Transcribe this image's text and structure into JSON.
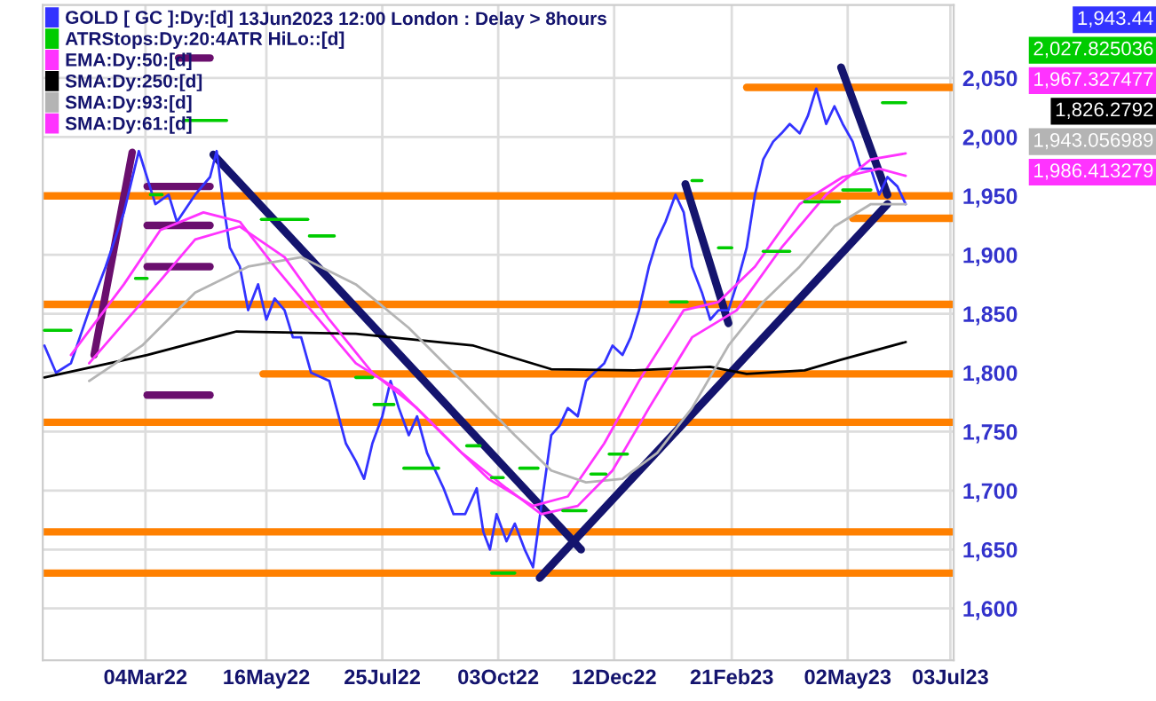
{
  "chart_data": {
    "type": "line",
    "title": "13Jun2023 12:00 London : Delay > 8hours",
    "annotations": [
      "1,943.44",
      "2,027.825036",
      "1,967.327477",
      "1,826.2792",
      "1,943.056989",
      "1,986.413279"
    ],
    "xlim": [
      "2022-01-01",
      "2023-07-05"
    ],
    "ylim": [
      1556,
      2112
    ],
    "xticks": [
      {
        "value": "2022-03-04",
        "label": "04Mar22"
      },
      {
        "value": "2022-05-16",
        "label": "16May22"
      },
      {
        "value": "2022-07-25",
        "label": "25Jul22"
      },
      {
        "value": "2022-10-03",
        "label": "03Oct22"
      },
      {
        "value": "2022-12-12",
        "label": "12Dec22"
      },
      {
        "value": "2023-02-21",
        "label": "21Feb23"
      },
      {
        "value": "2023-05-02",
        "label": "02May23"
      },
      {
        "value": "2023-07-03",
        "label": "03Jul23"
      }
    ],
    "yticks": [
      {
        "value": 1600,
        "label": "1,600"
      },
      {
        "value": 1650,
        "label": "1,650"
      },
      {
        "value": 1700,
        "label": "1,700"
      },
      {
        "value": 1750,
        "label": "1,750"
      },
      {
        "value": 1800,
        "label": "1,800"
      },
      {
        "value": 1850,
        "label": "1,850"
      },
      {
        "value": 1900,
        "label": "1,900"
      },
      {
        "value": 1950,
        "label": "1,950"
      },
      {
        "value": 2000,
        "label": "2,000"
      },
      {
        "value": 2050,
        "label": "2,050"
      }
    ],
    "grid": true,
    "legend": "top left",
    "marker": "none",
    "line_style": "solid",
    "ref_lines": [
      {
        "axis": "y",
        "value": 1950,
        "color": "#ff8000"
      },
      {
        "axis": "y",
        "value": 1858,
        "color": "#ff8000"
      },
      {
        "axis": "y",
        "value": 1758,
        "color": "#ff8000"
      },
      {
        "axis": "y",
        "value": 1665,
        "color": "#ff8000"
      },
      {
        "axis": "y",
        "value": 1630,
        "color": "#ff8000"
      }
    ],
    "series": [
      {
        "name": "GOLD [ GC ]:Dy:[d]",
        "color": "#3333ff",
        "x": [
          "2022-01-02",
          "2022-01-09",
          "2022-01-18",
          "2022-01-29",
          "2022-02-08",
          "2022-02-19",
          "2022-02-28",
          "2022-03-10",
          "2022-03-18",
          "2022-03-23",
          "2022-04-03",
          "2022-04-12",
          "2022-04-16",
          "2022-04-20",
          "2022-04-24",
          "2022-04-30",
          "2022-05-05",
          "2022-05-11",
          "2022-05-16",
          "2022-05-21",
          "2022-05-27",
          "2022-06-01",
          "2022-06-06",
          "2022-06-12",
          "2022-06-23",
          "2022-07-03",
          "2022-07-09",
          "2022-07-14",
          "2022-07-19",
          "2022-07-25",
          "2022-07-30",
          "2022-08-04",
          "2022-08-10",
          "2022-08-15",
          "2022-08-21",
          "2022-08-26",
          "2022-08-31",
          "2022-09-06",
          "2022-09-13",
          "2022-09-20",
          "2022-09-24",
          "2022-09-28",
          "2022-10-02",
          "2022-10-08",
          "2022-10-13",
          "2022-10-19",
          "2022-10-24",
          "2022-10-29",
          "2022-11-04",
          "2022-11-09",
          "2022-11-14",
          "2022-11-20",
          "2022-11-25",
          "2022-11-30",
          "2022-12-06",
          "2022-12-11",
          "2022-12-17",
          "2022-12-22",
          "2022-12-27",
          "2023-01-02",
          "2023-01-07",
          "2023-01-12",
          "2023-01-18",
          "2023-01-23",
          "2023-01-28",
          "2023-02-03",
          "2023-02-08",
          "2023-02-13",
          "2023-02-19",
          "2023-02-24",
          "2023-03-02",
          "2023-03-07",
          "2023-03-12",
          "2023-03-18",
          "2023-03-23",
          "2023-03-28",
          "2023-04-03",
          "2023-04-08",
          "2023-04-13",
          "2023-04-19",
          "2023-04-24",
          "2023-04-29",
          "2023-05-05",
          "2023-05-10",
          "2023-05-16",
          "2023-05-21",
          "2023-05-26",
          "2023-06-01",
          "2023-06-06"
        ],
        "values": [
          1823,
          1800,
          1808,
          1853,
          1890,
          1936,
          1988,
          1943,
          1951,
          1928,
          1951,
          1966,
          1988,
          1943,
          1906,
          1890,
          1853,
          1875,
          1845,
          1863,
          1853,
          1830,
          1830,
          1800,
          1793,
          1740,
          1725,
          1710,
          1740,
          1763,
          1793,
          1770,
          1747,
          1763,
          1732,
          1717,
          1702,
          1680,
          1680,
          1702,
          1665,
          1650,
          1680,
          1657,
          1672,
          1650,
          1635,
          1687,
          1747,
          1755,
          1770,
          1763,
          1793,
          1800,
          1808,
          1823,
          1815,
          1830,
          1853,
          1890,
          1913,
          1928,
          1951,
          1936,
          1890,
          1868,
          1845,
          1853,
          1853,
          1875,
          1906,
          1951,
          1981,
          1996,
          2003,
          2011,
          2003,
          2018,
          2041,
          2011,
          2026,
          2011,
          1996,
          1973,
          1973,
          1951,
          1966,
          1958,
          1943
        ]
      },
      {
        "name": "ATRStops:Dy:20:4ATR HiLo::[d]",
        "color": "#00cc00",
        "x": [
          "2022-01-02",
          "2022-01-18"
        ],
        "values": [
          1836,
          1836
        ]
      },
      {
        "name": "EMA:Dy:50:[d]",
        "color": "#ff33ff",
        "x": [
          "2022-01-18",
          "2022-02-19",
          "2022-03-13",
          "2022-04-08",
          "2022-04-30",
          "2022-05-21",
          "2022-06-12",
          "2022-07-09",
          "2022-08-04",
          "2022-08-31",
          "2022-09-27",
          "2022-10-24",
          "2022-11-14",
          "2022-12-06",
          "2022-12-27",
          "2023-01-23",
          "2023-02-13",
          "2023-03-07",
          "2023-04-03",
          "2023-04-29",
          "2023-05-21",
          "2023-06-06"
        ],
        "values": [
          1815,
          1875,
          1921,
          1936,
          1928,
          1890,
          1853,
          1808,
          1785,
          1747,
          1710,
          1687,
          1695,
          1740,
          1793,
          1853,
          1860,
          1890,
          1943,
          1966,
          1973,
          1967
        ]
      },
      {
        "name": "SMA:Dy:250:[d]",
        "color": "#000000",
        "x": [
          "2022-01-02",
          "2022-03-05",
          "2022-04-28",
          "2022-07-09",
          "2022-09-18",
          "2022-11-04",
          "2022-12-24",
          "2023-02-08",
          "2023-03-02",
          "2023-04-06",
          "2023-04-28",
          "2023-06-06"
        ],
        "values": [
          1796,
          1815,
          1835,
          1833,
          1823,
          1803,
          1802,
          1805,
          1799,
          1802,
          1811,
          1826
        ]
      },
      {
        "name": "SMA:Dy:93:[d]",
        "color": "#b4b4b4",
        "x": [
          "2022-01-29",
          "2022-03-02",
          "2022-04-03",
          "2022-05-05",
          "2022-06-06",
          "2022-07-09",
          "2022-08-10",
          "2022-09-11",
          "2022-10-13",
          "2022-11-04",
          "2022-11-25",
          "2022-12-17",
          "2023-01-07",
          "2023-01-28",
          "2023-02-19",
          "2023-03-12",
          "2023-04-03",
          "2023-04-24",
          "2023-05-16",
          "2023-06-06"
        ],
        "values": [
          1793,
          1823,
          1868,
          1890,
          1898,
          1875,
          1838,
          1793,
          1747,
          1717,
          1707,
          1710,
          1732,
          1770,
          1823,
          1860,
          1890,
          1924,
          1943,
          1943
        ]
      },
      {
        "name": "SMA:Dy:61:[d]",
        "color": "#ff33ff",
        "x": [
          "2022-01-29",
          "2022-03-02",
          "2022-04-03",
          "2022-04-30",
          "2022-05-27",
          "2022-06-23",
          "2022-07-19",
          "2022-08-15",
          "2022-09-11",
          "2022-10-08",
          "2022-10-29",
          "2022-11-20",
          "2022-12-11",
          "2023-01-02",
          "2023-01-28",
          "2023-02-24",
          "2023-03-23",
          "2023-04-19",
          "2023-05-16",
          "2023-06-06"
        ],
        "values": [
          1808,
          1860,
          1913,
          1924,
          1898,
          1845,
          1800,
          1770,
          1732,
          1702,
          1680,
          1687,
          1717,
          1770,
          1830,
          1853,
          1906,
          1951,
          1981,
          1986
        ]
      },
      {
        "color": "#00cc00",
        "x": [
          "2022-02-26",
          "2022-03-05"
        ],
        "values": [
          1880,
          1880
        ]
      },
      {
        "color": "#00cc00",
        "x": [
          "2022-03-07",
          "2022-03-14"
        ],
        "values": [
          1951,
          1951
        ]
      },
      {
        "color": "#00cc00",
        "x": [
          "2022-03-27",
          "2022-04-22"
        ],
        "values": [
          2014,
          2014
        ]
      },
      {
        "color": "#00cc00",
        "x": [
          "2022-05-13",
          "2022-06-10"
        ],
        "values": [
          1930,
          1930
        ]
      },
      {
        "color": "#00cc00",
        "x": [
          "2022-06-11",
          "2022-06-26"
        ],
        "values": [
          1916,
          1916
        ]
      },
      {
        "color": "#00cc00",
        "x": [
          "2022-07-09",
          "2022-07-19"
        ],
        "values": [
          1796,
          1796
        ]
      },
      {
        "color": "#00cc00",
        "x": [
          "2022-07-20",
          "2022-08-01"
        ],
        "values": [
          1773,
          1773
        ]
      },
      {
        "color": "#00cc00",
        "x": [
          "2022-08-07",
          "2022-08-28"
        ],
        "values": [
          1719,
          1719
        ]
      },
      {
        "color": "#00cc00",
        "x": [
          "2022-09-14",
          "2022-09-22"
        ],
        "values": [
          1738,
          1738
        ]
      },
      {
        "color": "#00cc00",
        "x": [
          "2022-09-29",
          "2022-10-06"
        ],
        "values": [
          1711,
          1711
        ]
      },
      {
        "color": "#00cc00",
        "x": [
          "2022-09-29",
          "2022-10-13"
        ],
        "values": [
          1630,
          1630
        ]
      },
      {
        "color": "#00cc00",
        "x": [
          "2022-10-16",
          "2022-10-27"
        ],
        "values": [
          1719,
          1719
        ]
      },
      {
        "color": "#00cc00",
        "x": [
          "2022-11-11",
          "2022-11-25"
        ],
        "values": [
          1683,
          1683
        ]
      },
      {
        "color": "#00cc00",
        "x": [
          "2022-11-28",
          "2022-12-07"
        ],
        "values": [
          1714,
          1714
        ]
      },
      {
        "color": "#00cc00",
        "x": [
          "2022-12-09",
          "2022-12-20"
        ],
        "values": [
          1731,
          1731
        ]
      },
      {
        "color": "#00cc00",
        "x": [
          "2023-01-15",
          "2023-01-25"
        ],
        "values": [
          1860,
          1860
        ]
      },
      {
        "color": "#00cc00",
        "x": [
          "2023-01-28",
          "2023-02-03"
        ],
        "values": [
          1963,
          1963
        ]
      },
      {
        "color": "#00cc00",
        "x": [
          "2023-02-13",
          "2023-02-21"
        ],
        "values": [
          1906,
          1906
        ]
      },
      {
        "color": "#00cc00",
        "x": [
          "2023-03-12",
          "2023-03-28"
        ],
        "values": [
          1903,
          1903
        ]
      },
      {
        "color": "#00cc00",
        "x": [
          "2023-04-06",
          "2023-04-27"
        ],
        "values": [
          1945,
          1945
        ]
      },
      {
        "color": "#00cc00",
        "x": [
          "2023-04-29",
          "2023-05-16"
        ],
        "values": [
          1955,
          1955
        ]
      },
      {
        "color": "#00cc00",
        "x": [
          "2023-05-23",
          "2023-06-06"
        ],
        "values": [
          2029,
          2029
        ]
      },
      {
        "color": "#ff8000",
        "x": [
          "2022-05-14",
          "2023-07-05"
        ],
        "values": [
          1799,
          1799
        ]
      },
      {
        "color": "#ff8000",
        "x": [
          "2023-03-02",
          "2023-07-05"
        ],
        "values": [
          2042,
          2042
        ]
      },
      {
        "color": "#ff8000",
        "x": [
          "2023-05-05",
          "2023-07-05"
        ],
        "values": [
          1931,
          1931
        ]
      },
      {
        "color": "#14146e",
        "x": [
          "2022-04-14",
          "2022-11-22"
        ],
        "values": [
          1985,
          1650
        ]
      },
      {
        "color": "#14146e",
        "x": [
          "2022-10-28",
          "2023-05-26"
        ],
        "values": [
          1626,
          1943
        ]
      },
      {
        "color": "#14146e",
        "x": [
          "2023-01-24",
          "2023-02-19"
        ],
        "values": [
          1960,
          1842
        ]
      },
      {
        "color": "#14146e",
        "x": [
          "2023-04-28",
          "2023-05-26"
        ],
        "values": [
          2059,
          1951
        ]
      },
      {
        "color": "#6a0f6e",
        "x": [
          "2022-02-01",
          "2022-02-24"
        ],
        "values": [
          1815,
          1987
        ]
      },
      {
        "color": "#6a0f6e",
        "x": [
          "2022-03-05",
          "2022-04-12"
        ],
        "values": [
          1958,
          1958
        ]
      },
      {
        "color": "#6a0f6e",
        "x": [
          "2022-03-05",
          "2022-04-12"
        ],
        "values": [
          1925,
          1925
        ]
      },
      {
        "color": "#6a0f6e",
        "x": [
          "2022-03-05",
          "2022-04-12"
        ],
        "values": [
          1890,
          1890
        ]
      },
      {
        "color": "#6a0f6e",
        "x": [
          "2022-03-05",
          "2022-04-12"
        ],
        "values": [
          1781,
          1781
        ]
      },
      {
        "color": "#6a0f6e",
        "x": [
          "2022-03-24",
          "2022-04-12"
        ],
        "values": [
          2067,
          2067
        ]
      }
    ]
  }
}
